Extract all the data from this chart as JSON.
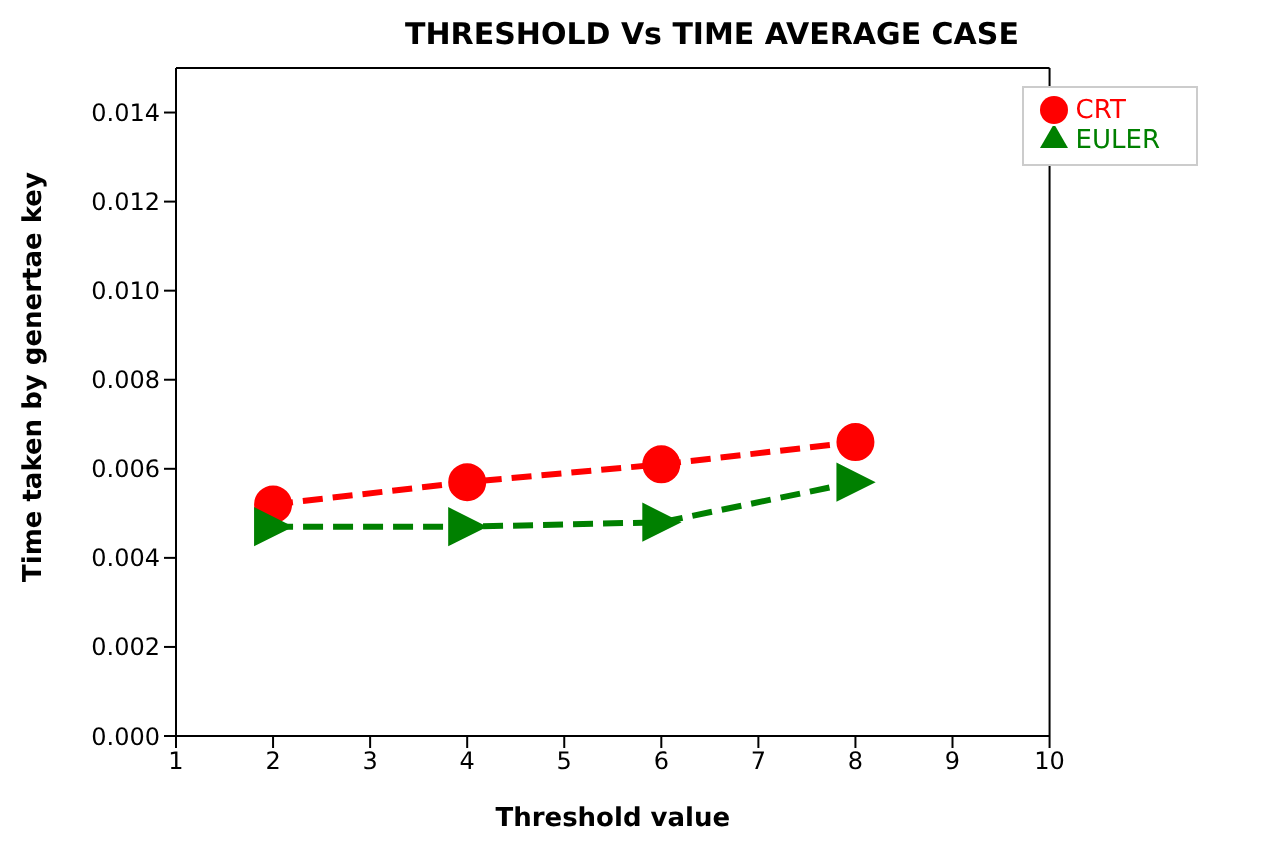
{
  "chart_data": {
    "type": "line",
    "title": "THRESHOLD  Vs TIME AVERAGE CASE",
    "xlabel": "Threshold value",
    "ylabel": "Time taken by genertae key",
    "x": [
      2,
      4,
      6,
      8
    ],
    "series": [
      {
        "name": "CRT",
        "color": "#ff0000",
        "values": [
          0.0052,
          0.0057,
          0.0061,
          0.0066
        ],
        "marker": "circle"
      },
      {
        "name": "EULER",
        "color": "#008000",
        "values": [
          0.0047,
          0.0047,
          0.0048,
          0.0057
        ],
        "marker": "triangle"
      }
    ],
    "xlim": [
      1,
      10
    ],
    "xticks": [
      1,
      2,
      3,
      4,
      5,
      6,
      7,
      8,
      9,
      10
    ],
    "ylim": [
      0,
      0.015
    ],
    "yticks": [
      {
        "value": 0,
        "label": "0.000"
      },
      {
        "value": 0.002,
        "label": "0.002"
      },
      {
        "value": 0.004,
        "label": "0.004"
      },
      {
        "value": 0.006,
        "label": "0.006"
      },
      {
        "value": 0.008,
        "label": "0.008"
      },
      {
        "value": 0.01,
        "label": "0.010"
      },
      {
        "value": 0.012,
        "label": "0.012"
      },
      {
        "value": 0.014,
        "label": "0.014"
      }
    ],
    "legend": "top right",
    "line_style": "dashed",
    "grid": false
  }
}
